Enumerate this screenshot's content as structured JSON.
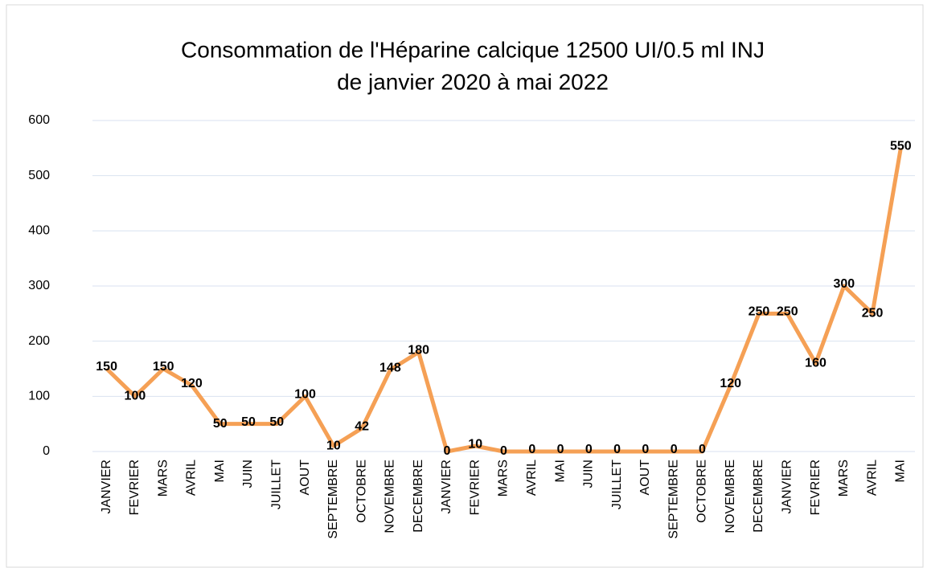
{
  "chart_data": {
    "type": "line",
    "title": [
      "Consommation de l'Héparine calcique 12500 UI/0.5 ml INJ",
      "de janvier 2020 à mai 2022"
    ],
    "categories": [
      "JANVIER",
      "FEVRIER",
      "MARS",
      "AVRIL",
      "MAI",
      "JUIN",
      "JUILLET",
      "AOUT",
      "SEPTEMBRE",
      "OCTOBRE",
      "NOVEMBRE",
      "DECEMBRE",
      "JANVIER",
      "FEVRIER",
      "MARS",
      "AVRIL",
      "MAI",
      "JUIN",
      "JUILLET",
      "AOUT",
      "SEPTEMBRE",
      "OCTOBRE",
      "NOVEMBRE",
      "DECEMBRE",
      "JANVIER",
      "FEVRIER",
      "MARS",
      "AVRIL",
      "MAI"
    ],
    "values": [
      150,
      100,
      150,
      120,
      50,
      50,
      50,
      100,
      10,
      42,
      148,
      180,
      0,
      10,
      0,
      0,
      0,
      0,
      0,
      0,
      0,
      0,
      120,
      250,
      250,
      160,
      300,
      250,
      550
    ],
    "color": "#f5a055",
    "ylim": [
      0,
      600
    ],
    "yticks": [
      0,
      100,
      200,
      300,
      400,
      500,
      600
    ],
    "grid": true
  }
}
